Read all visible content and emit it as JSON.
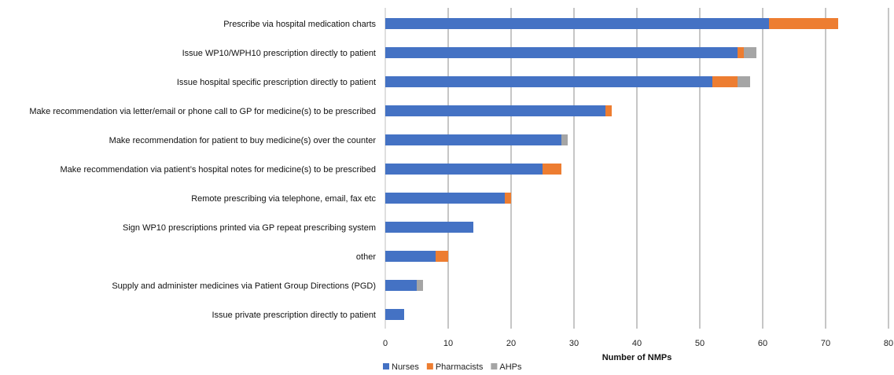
{
  "chart_data": {
    "type": "bar",
    "orientation": "horizontal",
    "stacked": true,
    "title": "",
    "xlabel": "Number of NMPs",
    "ylabel": "",
    "xlim": [
      0,
      80
    ],
    "xticks": [
      0,
      10,
      20,
      30,
      40,
      50,
      60,
      70,
      80
    ],
    "grid": true,
    "legend_position": "bottom-left",
    "categories": [
      "Prescribe via hospital medication charts",
      "Issue WP10/WPH10 prescription directly to patient",
      "Issue hospital specific prescription directly to patient",
      "Make recommendation via letter/email or phone call to GP for medicine(s) to be prescribed",
      "Make recommendation for patient to buy medicine(s) over the counter",
      "Make recommendation via patient’s hospital notes for medicine(s) to be prescribed",
      "Remote prescribing via telephone, email, fax etc",
      "Sign WP10 prescriptions printed via GP repeat prescribing system",
      "other",
      "Supply and administer medicines via Patient Group Directions (PGD)",
      "Issue private prescription directly to patient"
    ],
    "series": [
      {
        "name": "Nurses",
        "color": "#4472C4",
        "values": [
          61,
          56,
          52,
          35,
          28,
          25,
          19,
          14,
          8,
          5,
          3
        ]
      },
      {
        "name": "Pharmacists",
        "color": "#ED7D31",
        "values": [
          11,
          1,
          4,
          1,
          0,
          3,
          1,
          0,
          2,
          0,
          0
        ]
      },
      {
        "name": "AHPs",
        "color": "#A5A5A5",
        "values": [
          0,
          2,
          2,
          0,
          1,
          0,
          0,
          0,
          0,
          1,
          0
        ]
      }
    ]
  }
}
